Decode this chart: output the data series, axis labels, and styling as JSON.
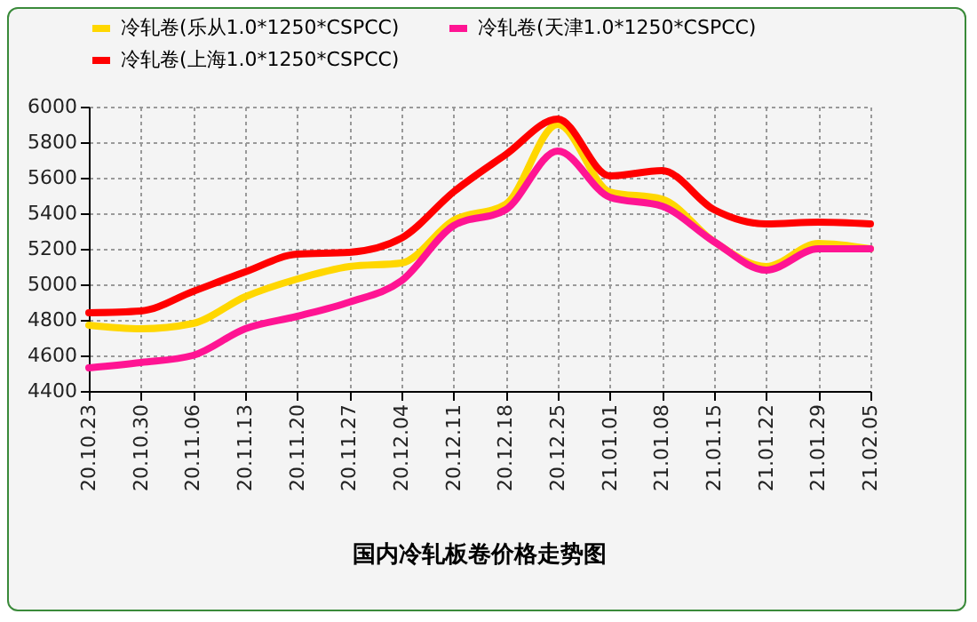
{
  "chart_data": {
    "type": "line",
    "title": "国内冷轧板卷价格走势图",
    "categories": [
      "20.10.23",
      "20.10.30",
      "20.11.06",
      "20.11.13",
      "20.11.20",
      "20.11.27",
      "20.12.04",
      "20.12.11",
      "20.12.18",
      "20.12.25",
      "21.01.01",
      "21.01.08",
      "21.01.15",
      "21.01.22",
      "21.01.29",
      "21.02.05"
    ],
    "series": [
      {
        "name": "冷轧卷(乐从1.0*1250*CSPCC)",
        "color": "#ffd700",
        "values": [
          4770,
          4750,
          4780,
          4930,
          5030,
          5100,
          5120,
          5360,
          5450,
          5900,
          5520,
          5480,
          5240,
          5100,
          5230,
          5200
        ]
      },
      {
        "name": "冷轧卷(天津1.0*1250*CSPCC)",
        "color": "#ff1493",
        "values": [
          4530,
          4560,
          4600,
          4750,
          4820,
          4900,
          5020,
          5330,
          5420,
          5750,
          5490,
          5440,
          5240,
          5080,
          5200,
          5200
        ]
      },
      {
        "name": "冷轧卷(上海1.0*1250*CSPCC)",
        "color": "#ff0000",
        "values": [
          4840,
          4850,
          4960,
          5070,
          5170,
          5180,
          5260,
          5520,
          5730,
          5930,
          5610,
          5640,
          5420,
          5340,
          5350,
          5340
        ]
      }
    ],
    "ylim": [
      4400,
      6000
    ],
    "yticks": [
      4400,
      4600,
      4800,
      5000,
      5200,
      5400,
      5600,
      5800,
      6000
    ],
    "grid": true,
    "legend": "top",
    "marker": "none",
    "line_style": "solid"
  }
}
